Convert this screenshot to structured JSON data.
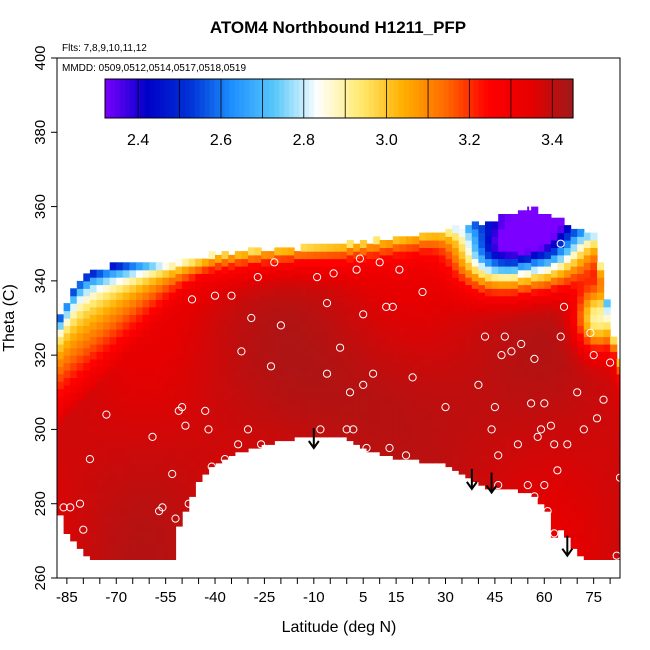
{
  "chart_data": {
    "type": "heatmap",
    "title": "ATOM4 Northbound H1211_PFP",
    "annotations": {
      "flights": "Flts: 7,8,9,10,11,12",
      "dates": "MMDD: 0509,0512,0514,0517,0518,0519"
    },
    "xlabel": "Latitude (deg N)",
    "ylabel": "Theta (C)",
    "xlim": [
      -88,
      83
    ],
    "ylim": [
      260,
      400
    ],
    "x_ticks": [
      -85,
      -70,
      -55,
      -40,
      -25,
      -10,
      5,
      15,
      30,
      45,
      60,
      75
    ],
    "x_tick_labels": [
      "-85",
      "-70",
      "-55",
      "-40",
      "-25",
      "-10",
      "5",
      "15",
      "30",
      "45",
      "60",
      "75"
    ],
    "y_ticks": [
      260,
      280,
      300,
      320,
      340,
      360,
      380,
      400
    ],
    "y_tick_labels": [
      "260",
      "280",
      "300",
      "320",
      "340",
      "360",
      "380",
      "400"
    ],
    "colorbar": {
      "range": [
        2.32,
        3.45
      ],
      "ticks": [
        2.4,
        2.6,
        2.8,
        3.0,
        3.2,
        3.4
      ],
      "tick_labels": [
        "2.4",
        "2.6",
        "2.8",
        "3.0",
        "3.2",
        "3.4"
      ],
      "palette": [
        "#7b00ff",
        "#0000c8",
        "#0033d6",
        "#1e90ff",
        "#5ac8fa",
        "#ffffff",
        "#ffea70",
        "#ffb000",
        "#ff6a00",
        "#ff0000",
        "#e60000",
        "#9e1a1a"
      ]
    },
    "arrows": [
      {
        "lat": -10,
        "theta": 295
      },
      {
        "lat": 38,
        "theta": 284
      },
      {
        "lat": 44,
        "theta": 283
      },
      {
        "lat": 67,
        "theta": 266
      }
    ],
    "samples": [
      [
        -84,
        279
      ],
      [
        -86,
        279
      ],
      [
        -81,
        280
      ],
      [
        -80,
        273
      ],
      [
        -78,
        292
      ],
      [
        -73,
        304
      ],
      [
        -59,
        298
      ],
      [
        -57,
        278
      ],
      [
        -56,
        279
      ],
      [
        -53,
        288
      ],
      [
        -52,
        276
      ],
      [
        -51,
        305
      ],
      [
        -50,
        306
      ],
      [
        -49,
        301
      ],
      [
        -48,
        280
      ],
      [
        -47,
        335
      ],
      [
        -43,
        305
      ],
      [
        -42,
        300
      ],
      [
        -41,
        290
      ],
      [
        -40,
        336
      ],
      [
        -37,
        292
      ],
      [
        -35,
        336
      ],
      [
        -33,
        296
      ],
      [
        -32,
        321
      ],
      [
        -30,
        300
      ],
      [
        -29,
        330
      ],
      [
        -27,
        341
      ],
      [
        -26,
        296
      ],
      [
        -23,
        317
      ],
      [
        -22,
        345
      ],
      [
        -20,
        328
      ],
      [
        -9,
        341
      ],
      [
        -8,
        300
      ],
      [
        -6,
        334
      ],
      [
        -6,
        315
      ],
      [
        -4,
        342
      ],
      [
        -2,
        322
      ],
      [
        0,
        300
      ],
      [
        1,
        310
      ],
      [
        2,
        300
      ],
      [
        3,
        343
      ],
      [
        4,
        346
      ],
      [
        5,
        312
      ],
      [
        5,
        331
      ],
      [
        6,
        295
      ],
      [
        8,
        315
      ],
      [
        10,
        345
      ],
      [
        12,
        333
      ],
      [
        13,
        295
      ],
      [
        14,
        333
      ],
      [
        16,
        343
      ],
      [
        18,
        293
      ],
      [
        20,
        314
      ],
      [
        23,
        337
      ],
      [
        30,
        306
      ],
      [
        40,
        312
      ],
      [
        42,
        325
      ],
      [
        44,
        300
      ],
      [
        45,
        306
      ],
      [
        46,
        293
      ],
      [
        46,
        285
      ],
      [
        47,
        320
      ],
      [
        48,
        325
      ],
      [
        50,
        321
      ],
      [
        52,
        296
      ],
      [
        53,
        323
      ],
      [
        55,
        285
      ],
      [
        56,
        307
      ],
      [
        57,
        282
      ],
      [
        57,
        319
      ],
      [
        58,
        298
      ],
      [
        59,
        300
      ],
      [
        60,
        307
      ],
      [
        60,
        285
      ],
      [
        61,
        278
      ],
      [
        62,
        301
      ],
      [
        63,
        296
      ],
      [
        63,
        272
      ],
      [
        64,
        289
      ],
      [
        65,
        325
      ],
      [
        65,
        350
      ],
      [
        66,
        333
      ],
      [
        67,
        296
      ],
      [
        70,
        310
      ],
      [
        72,
        300
      ],
      [
        74,
        326
      ],
      [
        75,
        320
      ],
      [
        76,
        303
      ],
      [
        78,
        308
      ],
      [
        80,
        318
      ],
      [
        82,
        266
      ],
      [
        83,
        287
      ]
    ]
  }
}
